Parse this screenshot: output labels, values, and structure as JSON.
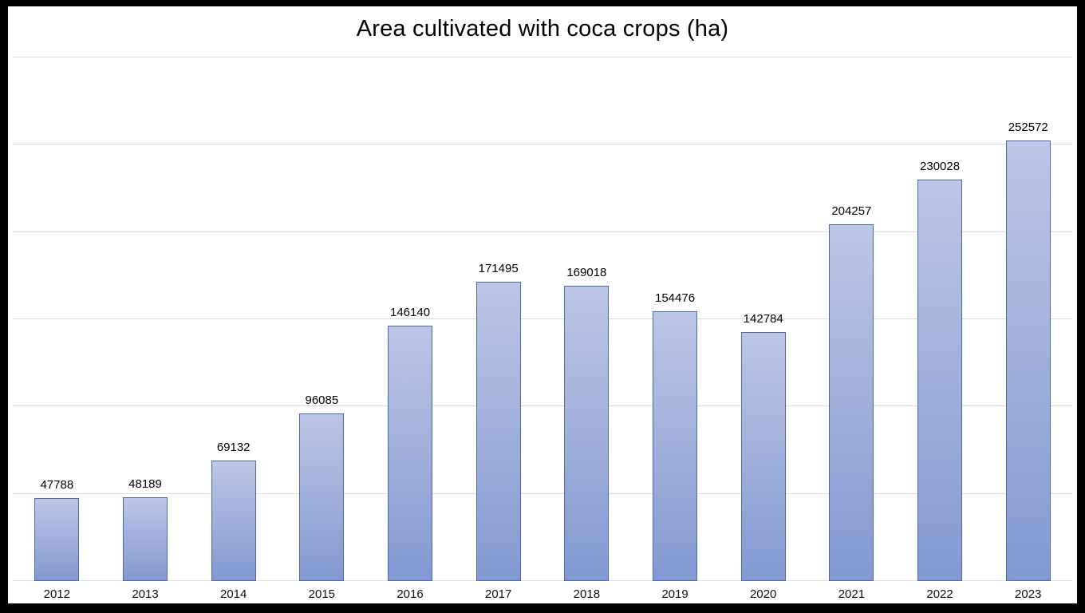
{
  "chart_data": {
    "type": "bar",
    "title": "Area cultivated with coca crops (ha)",
    "categories": [
      "2012",
      "2013",
      "2014",
      "2015",
      "2016",
      "2017",
      "2018",
      "2019",
      "2020",
      "2021",
      "2022",
      "2023"
    ],
    "values": [
      47788,
      48189,
      69132,
      96085,
      146140,
      171495,
      169018,
      154476,
      142784,
      204257,
      230028,
      252572
    ],
    "xlabel": "",
    "ylabel": "",
    "ylim": [
      0,
      300000
    ],
    "gridline_step": 50000,
    "grid": true,
    "legend": false,
    "data_labels": true,
    "y_tick_labels_visible": false,
    "colors": {
      "bar_fill_top": "#bcc6e5",
      "bar_fill_bottom": "#8399d2",
      "bar_border": "#4d69ac",
      "gridline": "#dcdcdc",
      "background": "#ffffff",
      "frame": "#000000",
      "text": "#000000"
    }
  }
}
